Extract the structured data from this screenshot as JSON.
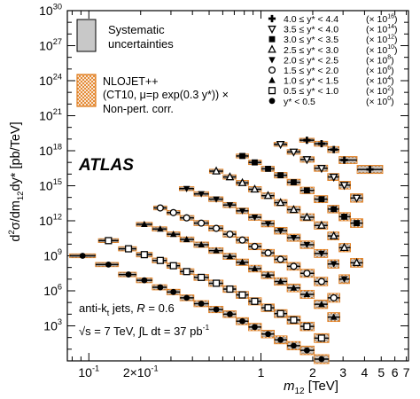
{
  "chart_data": {
    "type": "scatter",
    "xlabel_main": "m",
    "xlabel_sub": "12",
    "xlabel_unit": " [TeV]",
    "ylabel_parts": [
      "d",
      "2",
      "σ/dm",
      "12",
      "dy* [pb/TeV]"
    ],
    "xscale": "log",
    "yscale": "log",
    "xlim": [
      0.075,
      7.2
    ],
    "ylim_exp": [
      0,
      30
    ],
    "x_tick_labels": [
      {
        "x": 0.1,
        "label": "10",
        "sup": "-1"
      },
      {
        "x": 0.2,
        "label": "2×10",
        "sup": "-1"
      },
      {
        "x": 1,
        "label": "1"
      },
      {
        "x": 2,
        "label": "2"
      },
      {
        "x": 3,
        "label": "3"
      },
      {
        "x": 4,
        "label": "4"
      },
      {
        "x": 5,
        "label": "5"
      },
      {
        "x": 6,
        "label": "6"
      },
      {
        "x": 7,
        "label": "7"
      }
    ],
    "y_tick_labels": [
      {
        "exp": 3,
        "label": "10",
        "sup": "3"
      },
      {
        "exp": 6,
        "label": "10",
        "sup": "6"
      },
      {
        "exp": 9,
        "label": "10",
        "sup": "9"
      },
      {
        "exp": 12,
        "label": "10",
        "sup": "12"
      },
      {
        "exp": 15,
        "label": "10",
        "sup": "15"
      },
      {
        "exp": 18,
        "label": "10",
        "sup": "18"
      },
      {
        "exp": 21,
        "label": "10",
        "sup": "21"
      },
      {
        "exp": 24,
        "label": "10",
        "sup": "24"
      },
      {
        "exp": 27,
        "label": "10",
        "sup": "27"
      },
      {
        "exp": 30,
        "label": "10",
        "sup": "30"
      }
    ],
    "atlas_label": "ATLAS",
    "info_lines": [
      {
        "pre": "anti-k",
        "sub": "t",
        "post": " jets, ",
        "var": "R",
        "tail": " = 0.6"
      },
      {
        "pre": "√s = 7 TeV, ∫L dt = 37 pb",
        "sup": "-1"
      }
    ],
    "legend_left": [
      {
        "kind": "systematic",
        "lines": [
          "Systematic",
          "uncertainties"
        ]
      },
      {
        "kind": "nlojet",
        "lines": [
          "NLOJET++",
          "(CT10, μ=p  exp(0.3 y*)) ×",
          "Non-pert. corr."
        ]
      }
    ],
    "legend_right": [
      {
        "marker": "cross",
        "label": "4.0 ≤ y* < 4.4",
        "scale": "(× 10",
        "scale_sup": "16",
        "scale_close": ")"
      },
      {
        "marker": "tri-down-open",
        "label": "3.5 ≤ y* < 4.0",
        "scale": "(× 10",
        "scale_sup": "14",
        "scale_close": ")"
      },
      {
        "marker": "square",
        "label": "3.0 ≤ y* < 3.5",
        "scale": "(× 10",
        "scale_sup": "12",
        "scale_close": ")"
      },
      {
        "marker": "tri-up-open",
        "label": "2.5 ≤ y* < 3.0",
        "scale": "(× 10",
        "scale_sup": "10",
        "scale_close": ")"
      },
      {
        "marker": "tri-down",
        "label": "2.0 ≤ y* < 2.5",
        "scale": "(× 10",
        "scale_sup": "8",
        "scale_close": ")"
      },
      {
        "marker": "circle-open",
        "label": "1.5 ≤ y* < 2.0",
        "scale": "(× 10",
        "scale_sup": "6",
        "scale_close": ")"
      },
      {
        "marker": "tri-up",
        "label": "1.0 ≤ y* < 1.5",
        "scale": "(× 10",
        "scale_sup": "4",
        "scale_close": ")"
      },
      {
        "marker": "square-open",
        "label": "0.5 ≤ y* < 1.0",
        "scale": "(× 10",
        "scale_sup": "2",
        "scale_close": ")"
      },
      {
        "marker": "circle",
        "label": "y* < 0.5",
        "scale": "(× 10",
        "scale_sup": "0",
        "scale_close": ")"
      }
    ],
    "colors": {
      "theory": "#e07b1a",
      "systematic": "#c8c8c8",
      "data": "#000000"
    },
    "series": [
      {
        "name": "y* < 0.5 (×10^0)",
        "marker": "circle",
        "x": [
          0.092,
          0.13,
          0.17,
          0.21,
          0.26,
          0.31,
          0.37,
          0.45,
          0.55,
          0.66,
          0.78,
          0.92,
          1.1,
          1.3,
          1.55,
          1.85,
          2.25
        ],
        "log10y": [
          9.0,
          8.25,
          7.4,
          6.9,
          6.3,
          5.9,
          5.4,
          4.9,
          4.4,
          4.0,
          3.4,
          2.9,
          2.3,
          1.8,
          1.3,
          0.9,
          0.15
        ]
      },
      {
        "name": "0.5 ≤ y* < 1.0 (×10^2)",
        "marker": "square-open",
        "x": [
          0.13,
          0.17,
          0.21,
          0.26,
          0.31,
          0.37,
          0.45,
          0.55,
          0.66,
          0.78,
          0.92,
          1.1,
          1.3,
          1.55,
          1.85,
          2.25
        ],
        "log10y": [
          10.3,
          9.6,
          9.1,
          8.6,
          8.15,
          7.65,
          7.15,
          6.65,
          6.15,
          5.65,
          5.1,
          4.55,
          4.05,
          3.5,
          2.95,
          1.95
        ]
      },
      {
        "name": "1.0 ≤ y* < 1.5 (×10^4)",
        "marker": "tri-up",
        "x": [
          0.21,
          0.26,
          0.31,
          0.37,
          0.45,
          0.55,
          0.66,
          0.78,
          0.92,
          1.1,
          1.3,
          1.55,
          1.85,
          2.25,
          2.65
        ],
        "log10y": [
          11.7,
          11.3,
          10.85,
          10.4,
          9.95,
          9.45,
          8.95,
          8.45,
          7.9,
          7.35,
          6.8,
          6.25,
          5.7,
          4.85,
          3.75
        ]
      },
      {
        "name": "1.5 ≤ y* < 2.0 (×10^6)",
        "marker": "circle-open",
        "x": [
          0.26,
          0.31,
          0.37,
          0.45,
          0.55,
          0.66,
          0.78,
          0.92,
          1.1,
          1.3,
          1.55,
          1.85,
          2.25,
          2.65
        ],
        "log10y": [
          13.1,
          12.7,
          12.25,
          11.8,
          11.35,
          10.85,
          10.35,
          9.8,
          9.25,
          8.7,
          8.1,
          7.5,
          6.8,
          5.4
        ]
      },
      {
        "name": "2.0 ≤ y* < 2.5 (×10^8)",
        "marker": "tri-down",
        "x": [
          0.37,
          0.45,
          0.55,
          0.66,
          0.78,
          0.92,
          1.1,
          1.3,
          1.55,
          1.85,
          2.25,
          2.65,
          3.05
        ],
        "log10y": [
          14.75,
          14.3,
          13.85,
          13.35,
          12.85,
          12.3,
          11.75,
          11.15,
          10.55,
          9.95,
          9.2,
          8.3,
          7.0
        ]
      },
      {
        "name": "2.5 ≤ y* < 3.0 (×10^10)",
        "marker": "tri-up-open",
        "x": [
          0.55,
          0.66,
          0.78,
          0.92,
          1.1,
          1.3,
          1.55,
          1.85,
          2.25,
          2.65,
          3.05,
          3.6
        ],
        "log10y": [
          16.25,
          15.75,
          15.25,
          14.7,
          14.15,
          13.55,
          12.95,
          12.3,
          11.6,
          10.7,
          9.7,
          8.4
        ]
      },
      {
        "name": "3.0 ≤ y* < 3.5 (×10^12)",
        "marker": "square",
        "x": [
          0.78,
          0.92,
          1.1,
          1.3,
          1.55,
          1.85,
          2.25,
          2.65,
          3.05,
          3.6
        ],
        "log10y": [
          17.55,
          17.0,
          16.45,
          15.9,
          15.3,
          14.6,
          13.85,
          13.0,
          12.35,
          11.8
        ]
      },
      {
        "name": "3.5 ≤ y* < 4.0 (×10^14)",
        "marker": "tri-down-open",
        "x": [
          1.3,
          1.55,
          1.85,
          2.25,
          2.65,
          3.05,
          3.6
        ],
        "log10y": [
          18.55,
          17.9,
          17.25,
          16.5,
          15.75,
          15.05,
          13.95
        ]
      },
      {
        "name": "4.0 ≤ y* < 4.4 (×10^16)",
        "marker": "cross",
        "x": [
          1.85,
          2.25,
          2.65,
          3.05,
          4.3
        ],
        "log10y": [
          18.9,
          18.6,
          18.1,
          17.2,
          16.4
        ]
      }
    ]
  }
}
